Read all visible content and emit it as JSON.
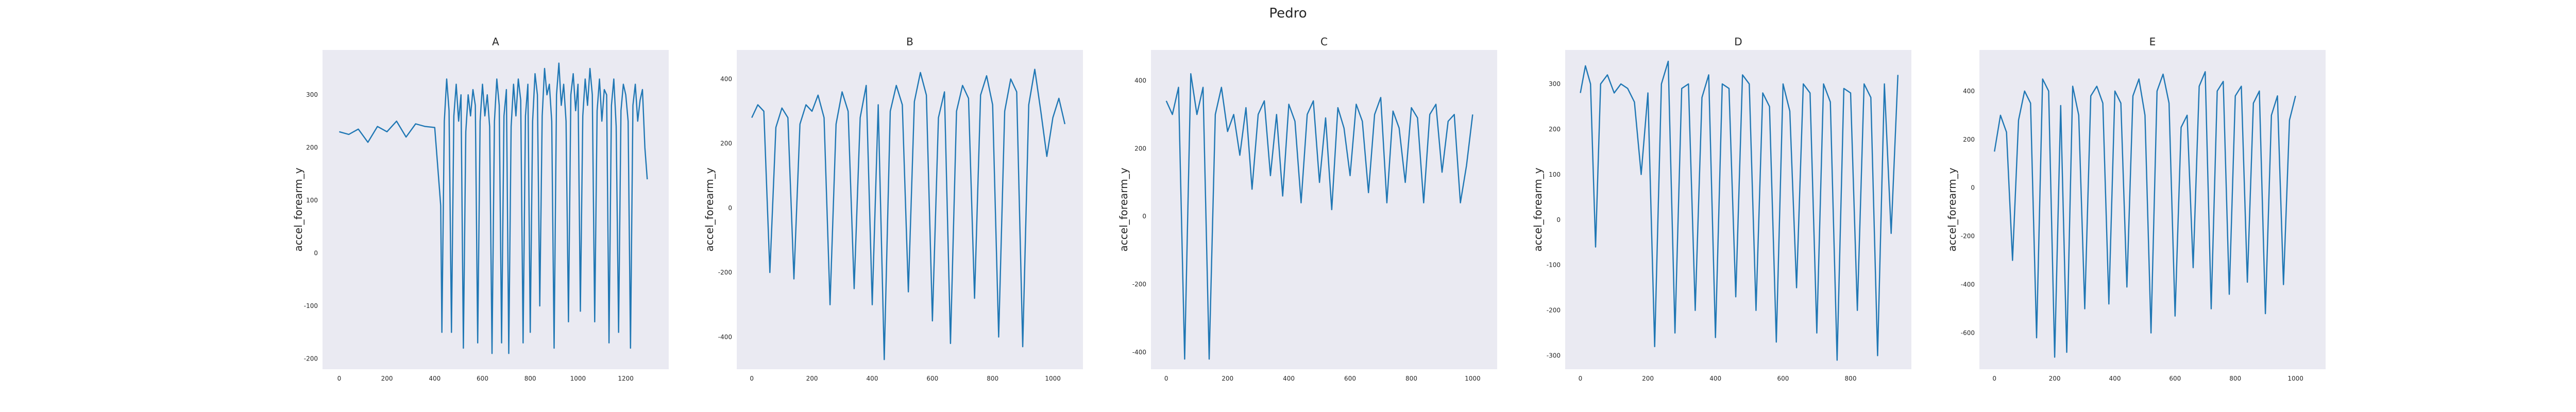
{
  "figure_title": "Pedro",
  "colors": {
    "line": "#1f77b4",
    "axes_bg": "#eaeaf2",
    "text": "#262626"
  },
  "chart_data": [
    {
      "type": "line",
      "title": "A",
      "xlabel": "",
      "ylabel": "accel_forearm_y",
      "xlim": [
        -70,
        1380
      ],
      "ylim": [
        -220,
        385
      ],
      "grid": false,
      "xticks": [
        0,
        200,
        400,
        600,
        800,
        1000,
        1200
      ],
      "yticks": [
        -200,
        -100,
        0,
        100,
        200,
        300
      ],
      "x": [
        0,
        40,
        80,
        120,
        160,
        200,
        240,
        280,
        320,
        360,
        400,
        420,
        425,
        430,
        440,
        450,
        460,
        470,
        480,
        490,
        500,
        510,
        520,
        530,
        540,
        550,
        560,
        570,
        580,
        590,
        600,
        610,
        620,
        630,
        640,
        650,
        660,
        670,
        680,
        690,
        700,
        710,
        720,
        730,
        740,
        750,
        760,
        770,
        780,
        790,
        800,
        810,
        820,
        830,
        840,
        850,
        860,
        870,
        880,
        890,
        900,
        910,
        920,
        930,
        940,
        950,
        960,
        970,
        980,
        990,
        1000,
        1010,
        1020,
        1030,
        1040,
        1050,
        1060,
        1070,
        1080,
        1090,
        1100,
        1110,
        1120,
        1130,
        1140,
        1150,
        1160,
        1170,
        1180,
        1190,
        1200,
        1210,
        1220,
        1230,
        1240,
        1250,
        1260,
        1270,
        1280,
        1290
      ],
      "y": [
        230,
        225,
        235,
        210,
        240,
        230,
        250,
        220,
        245,
        240,
        238,
        120,
        90,
        -150,
        250,
        330,
        270,
        -150,
        260,
        320,
        250,
        300,
        -180,
        230,
        300,
        260,
        310,
        280,
        -170,
        250,
        320,
        260,
        300,
        240,
        -190,
        250,
        330,
        280,
        -170,
        260,
        310,
        -190,
        240,
        320,
        260,
        330,
        290,
        -170,
        260,
        320,
        -150,
        250,
        340,
        300,
        -100,
        260,
        350,
        300,
        320,
        250,
        -180,
        300,
        360,
        280,
        320,
        250,
        -130,
        300,
        340,
        270,
        320,
        -110,
        260,
        330,
        280,
        350,
        300,
        -130,
        270,
        330,
        250,
        310,
        300,
        -170,
        280,
        330,
        240,
        -150,
        270,
        320,
        300,
        250,
        -180,
        280,
        320,
        250,
        290,
        310,
        200,
        140
      ]
    },
    {
      "type": "line",
      "title": "B",
      "xlabel": "",
      "ylabel": "accel_forearm_y",
      "xlim": [
        -50,
        1100
      ],
      "ylim": [
        -500,
        490
      ],
      "grid": false,
      "xticks": [
        0,
        200,
        400,
        600,
        800,
        1000
      ],
      "yticks": [
        -400,
        -200,
        0,
        200,
        400
      ],
      "x": [
        0,
        20,
        40,
        60,
        80,
        100,
        120,
        140,
        160,
        180,
        200,
        220,
        240,
        260,
        280,
        300,
        320,
        340,
        360,
        380,
        400,
        420,
        440,
        460,
        480,
        500,
        520,
        540,
        560,
        580,
        600,
        620,
        640,
        660,
        680,
        700,
        720,
        740,
        760,
        780,
        800,
        820,
        840,
        860,
        880,
        900,
        920,
        940,
        960,
        980,
        1000,
        1020,
        1040
      ],
      "y": [
        280,
        320,
        300,
        -200,
        250,
        310,
        280,
        -220,
        260,
        320,
        300,
        350,
        280,
        -300,
        260,
        360,
        300,
        -250,
        280,
        380,
        -300,
        320,
        -470,
        300,
        380,
        320,
        -260,
        330,
        420,
        350,
        -350,
        280,
        360,
        -420,
        300,
        380,
        340,
        -280,
        350,
        410,
        320,
        -400,
        300,
        400,
        360,
        -430,
        320,
        430,
        300,
        160,
        280,
        340,
        260
      ]
    },
    {
      "type": "line",
      "title": "C",
      "xlabel": "",
      "ylabel": "accel_forearm_y",
      "xlim": [
        -50,
        1080
      ],
      "ylim": [
        -450,
        490
      ],
      "grid": false,
      "xticks": [
        0,
        200,
        400,
        600,
        800,
        1000
      ],
      "yticks": [
        -400,
        -200,
        0,
        200,
        400
      ],
      "x": [
        0,
        20,
        40,
        60,
        80,
        100,
        120,
        140,
        160,
        180,
        200,
        220,
        240,
        260,
        280,
        300,
        320,
        340,
        360,
        380,
        400,
        420,
        440,
        460,
        480,
        500,
        520,
        540,
        560,
        580,
        600,
        620,
        640,
        660,
        680,
        700,
        720,
        740,
        760,
        780,
        800,
        820,
        840,
        860,
        880,
        900,
        920,
        940,
        960,
        980,
        1000
      ],
      "y": [
        340,
        300,
        380,
        -420,
        420,
        300,
        380,
        -420,
        300,
        380,
        250,
        300,
        180,
        320,
        80,
        300,
        340,
        120,
        300,
        60,
        330,
        280,
        40,
        300,
        340,
        100,
        290,
        20,
        320,
        260,
        120,
        330,
        280,
        70,
        300,
        350,
        40,
        310,
        260,
        100,
        320,
        290,
        40,
        300,
        330,
        130,
        280,
        300,
        40,
        150,
        300
      ]
    },
    {
      "type": "line",
      "title": "D",
      "xlabel": "",
      "ylabel": "accel_forearm_y",
      "xlim": [
        -45,
        980
      ],
      "ylim": [
        -330,
        375
      ],
      "grid": false,
      "xticks": [
        0,
        200,
        400,
        600,
        800
      ],
      "yticks": [
        -300,
        -200,
        -100,
        0,
        100,
        200,
        300
      ],
      "x": [
        0,
        15,
        30,
        45,
        60,
        80,
        100,
        120,
        140,
        160,
        180,
        200,
        220,
        240,
        260,
        280,
        300,
        320,
        340,
        360,
        380,
        400,
        420,
        440,
        460,
        480,
        500,
        520,
        540,
        560,
        580,
        600,
        620,
        640,
        660,
        680,
        700,
        720,
        740,
        760,
        780,
        800,
        820,
        840,
        860,
        880,
        900,
        920,
        940
      ],
      "y": [
        280,
        340,
        300,
        -60,
        300,
        320,
        280,
        300,
        290,
        260,
        100,
        280,
        -280,
        300,
        350,
        -250,
        290,
        300,
        -200,
        270,
        320,
        -260,
        300,
        290,
        -170,
        320,
        300,
        -200,
        280,
        250,
        -270,
        300,
        240,
        -150,
        300,
        280,
        -250,
        300,
        260,
        -310,
        290,
        280,
        -200,
        300,
        270,
        -300,
        300,
        -30,
        320
      ]
    },
    {
      "type": "line",
      "title": "E",
      "xlabel": "",
      "ylabel": "accel_forearm_y",
      "xlim": [
        -50,
        1100
      ],
      "ylim": [
        -750,
        570
      ],
      "grid": false,
      "xticks": [
        0,
        200,
        400,
        600,
        800,
        1000
      ],
      "yticks": [
        -600,
        -400,
        -200,
        0,
        200,
        400
      ],
      "x": [
        0,
        20,
        40,
        60,
        80,
        100,
        120,
        140,
        160,
        180,
        200,
        220,
        240,
        260,
        280,
        300,
        320,
        340,
        360,
        380,
        400,
        420,
        440,
        460,
        480,
        500,
        520,
        540,
        560,
        580,
        600,
        620,
        640,
        660,
        680,
        700,
        720,
        740,
        760,
        780,
        800,
        820,
        840,
        860,
        880,
        900,
        920,
        940,
        960,
        980,
        1000
      ],
      "y": [
        150,
        300,
        230,
        -300,
        280,
        400,
        350,
        -620,
        450,
        400,
        -700,
        340,
        -680,
        420,
        300,
        -500,
        380,
        420,
        350,
        -480,
        400,
        350,
        -410,
        380,
        450,
        300,
        -600,
        400,
        470,
        350,
        -530,
        250,
        300,
        -330,
        420,
        480,
        -500,
        400,
        440,
        -440,
        380,
        420,
        -390,
        350,
        400,
        -520,
        300,
        380,
        -400,
        280,
        380
      ]
    }
  ]
}
